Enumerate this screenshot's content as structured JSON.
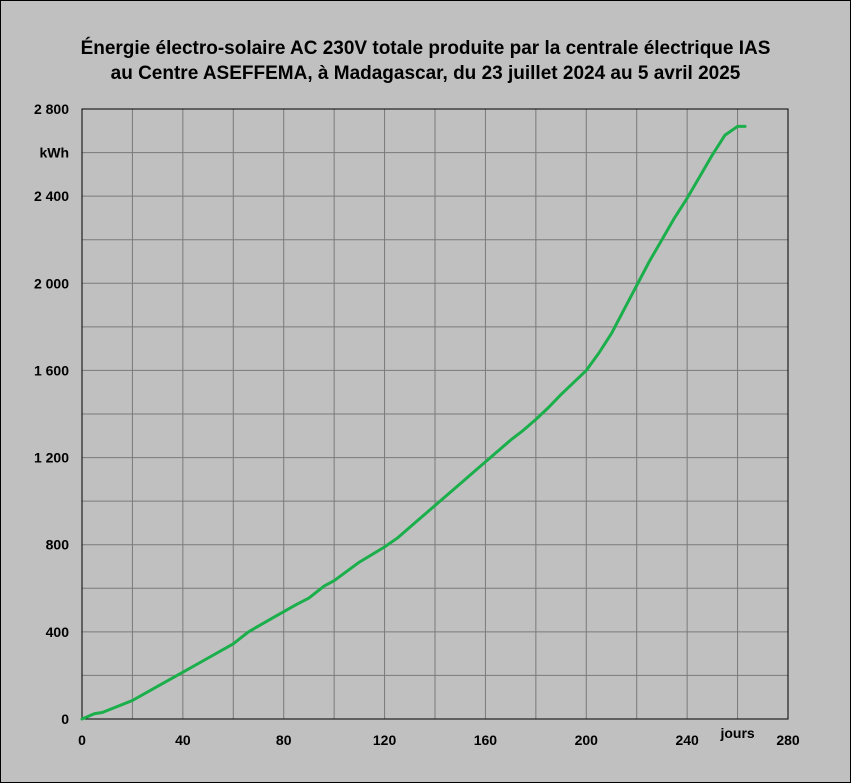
{
  "chart_data": {
    "type": "line",
    "title": "Énergie électro-solaire AC 230V totale produite par la centrale électrique IAS",
    "subtitle": "au Centre ASEFFEMA, à Madagascar, du 23 juillet 2024 au 5 avril 2025",
    "xlabel": "jours",
    "ylabel": "kWh",
    "xlim": [
      0,
      280
    ],
    "ylim": [
      0,
      2800
    ],
    "x_ticks": [
      0,
      40,
      80,
      120,
      160,
      200,
      240,
      280
    ],
    "y_ticks": [
      0,
      400,
      800,
      1200,
      1600,
      2000,
      2400,
      2800
    ],
    "x_tick_labels": [
      "0",
      "40",
      "80",
      "120",
      "160",
      "200",
      "240",
      "280"
    ],
    "y_tick_labels": [
      "0",
      "400",
      "800",
      "1 200",
      "1 600",
      "2 000",
      "2 400",
      "2 800"
    ],
    "grid": true,
    "series": [
      {
        "color": "#1aaf4b",
        "x": [
          0,
          5,
          8,
          12,
          20,
          30,
          40,
          50,
          60,
          66,
          75,
          85,
          90,
          96,
          100,
          110,
          120,
          125,
          130,
          135,
          140,
          145,
          150,
          155,
          160,
          165,
          170,
          175,
          180,
          185,
          190,
          195,
          200,
          205,
          210,
          215,
          220,
          225,
          230,
          235,
          240,
          245,
          250,
          255,
          260,
          263
        ],
        "y": [
          0,
          25,
          30,
          48,
          85,
          150,
          215,
          280,
          345,
          400,
          460,
          525,
          555,
          610,
          635,
          720,
          790,
          830,
          880,
          930,
          980,
          1030,
          1080,
          1130,
          1180,
          1230,
          1280,
          1325,
          1375,
          1430,
          1490,
          1545,
          1600,
          1680,
          1770,
          1880,
          1990,
          2100,
          2200,
          2300,
          2390,
          2490,
          2590,
          2680,
          2720,
          2720
        ]
      }
    ]
  }
}
